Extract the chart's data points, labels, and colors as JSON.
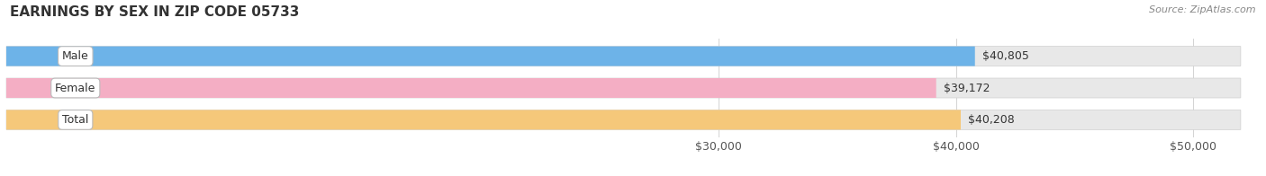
{
  "title": "EARNINGS BY SEX IN ZIP CODE 05733",
  "source_text": "Source: ZipAtlas.com",
  "categories": [
    "Male",
    "Female",
    "Total"
  ],
  "values": [
    40805,
    39172,
    40208
  ],
  "value_labels": [
    "$40,805",
    "$39,172",
    "$40,208"
  ],
  "bar_colors": [
    "#6db3e8",
    "#f4aec4",
    "#f5c87a"
  ],
  "bar_bg_color": "#e8e8e8",
  "bar_border_color": "#d0d0d0",
  "xlim_min": 0,
  "xlim_max": 52000,
  "data_min": 0,
  "xticks": [
    30000,
    40000,
    50000
  ],
  "xtick_labels": [
    "$30,000",
    "$40,000",
    "$50,000"
  ],
  "background_color": "#ffffff",
  "title_fontsize": 11,
  "bar_height": 0.62,
  "label_fontsize": 9,
  "value_fontsize": 9,
  "source_fontsize": 8
}
